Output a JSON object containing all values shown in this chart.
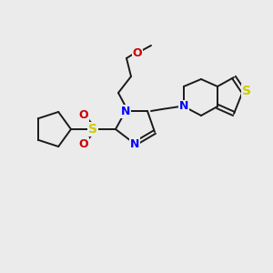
{
  "bg_color": "#ebebeb",
  "line_color": "#1a1a1a",
  "line_width": 1.4,
  "figsize": [
    3.0,
    3.0
  ],
  "dpi": 100,
  "colors": {
    "N": "#0000ff",
    "O": "#cc0000",
    "S_thio": "#cccc00",
    "S_sul": "#cccc00"
  }
}
